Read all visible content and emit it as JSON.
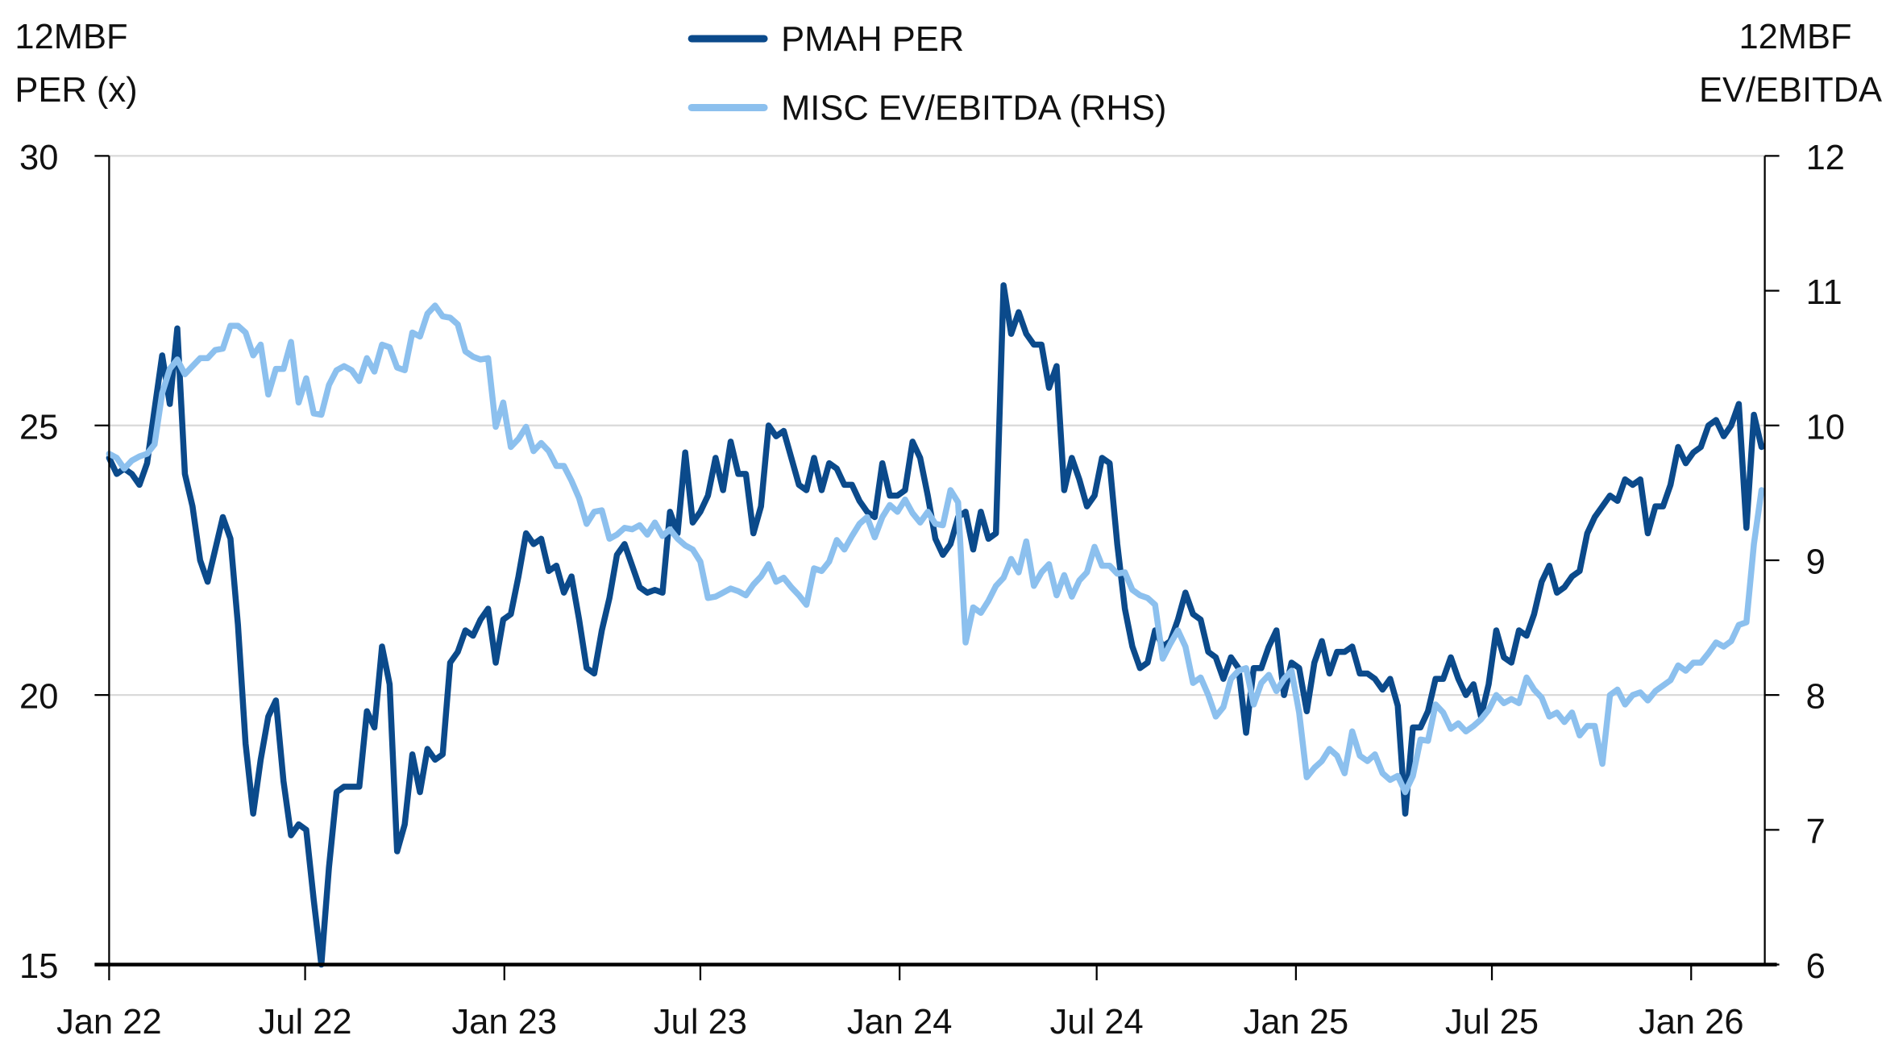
{
  "chart_data": {
    "type": "line",
    "title": "",
    "ylabel_left": [
      "12MBF",
      "PER (x)"
    ],
    "ylabel_right": [
      "12MBF",
      "EV/EBITDA"
    ],
    "xlabel": "",
    "x_ticks": [
      {
        "date": "2022-01-01",
        "label": "Jan 22"
      },
      {
        "date": "2022-07-01",
        "label": "Jul 22"
      },
      {
        "date": "2023-01-01",
        "label": "Jan 23"
      },
      {
        "date": "2023-07-01",
        "label": "Jul 23"
      },
      {
        "date": "2024-01-01",
        "label": "Jan 24"
      },
      {
        "date": "2024-07-01",
        "label": "Jul 24"
      },
      {
        "date": "2025-01-01",
        "label": "Jan 25"
      },
      {
        "date": "2025-07-01",
        "label": "Jul 25"
      },
      {
        "date": "2026-01-01",
        "label": "Jan 26"
      }
    ],
    "xlim": [
      "2022-01-01",
      "2026-03-10"
    ],
    "ylim_left": [
      15,
      30
    ],
    "ylim_right": [
      6,
      12
    ],
    "y_ticks_left": [
      "30",
      "25",
      "20",
      "15"
    ],
    "y_ticks_right": [
      "12",
      "11",
      "10",
      "9",
      "8",
      "7",
      "6"
    ],
    "grid": "horizontal",
    "legend_position": "top-center",
    "dates": [
      "2022-01-01",
      "2022-01-08",
      "2022-01-15",
      "2022-01-22",
      "2022-01-29",
      "2022-02-05",
      "2022-02-12",
      "2022-02-19",
      "2022-02-26",
      "2022-03-05",
      "2022-03-12",
      "2022-03-19",
      "2022-03-26",
      "2022-04-02",
      "2022-04-09",
      "2022-04-16",
      "2022-04-23",
      "2022-04-30",
      "2022-05-07",
      "2022-05-14",
      "2022-05-21",
      "2022-05-28",
      "2022-06-04",
      "2022-06-11",
      "2022-06-18",
      "2022-06-25",
      "2022-07-02",
      "2022-07-09",
      "2022-07-16",
      "2022-07-23",
      "2022-07-30",
      "2022-08-06",
      "2022-08-13",
      "2022-08-20",
      "2022-08-27",
      "2022-09-03",
      "2022-09-10",
      "2022-09-17",
      "2022-09-24",
      "2022-10-01",
      "2022-10-08",
      "2022-10-15",
      "2022-10-22",
      "2022-10-29",
      "2022-11-05",
      "2022-11-12",
      "2022-11-19",
      "2022-11-26",
      "2022-12-03",
      "2022-12-10",
      "2022-12-17",
      "2022-12-24",
      "2022-12-31",
      "2023-01-07",
      "2023-01-14",
      "2023-01-21",
      "2023-01-28",
      "2023-02-04",
      "2023-02-11",
      "2023-02-18",
      "2023-02-25",
      "2023-03-04",
      "2023-03-11",
      "2023-03-18",
      "2023-03-25",
      "2023-04-01",
      "2023-04-08",
      "2023-04-15",
      "2023-04-22",
      "2023-04-29",
      "2023-05-06",
      "2023-05-13",
      "2023-05-20",
      "2023-05-27",
      "2023-06-03",
      "2023-06-10",
      "2023-06-17",
      "2023-06-24",
      "2023-07-01",
      "2023-07-08",
      "2023-07-15",
      "2023-07-22",
      "2023-07-29",
      "2023-08-05",
      "2023-08-12",
      "2023-08-19",
      "2023-08-26",
      "2023-09-02",
      "2023-09-09",
      "2023-09-16",
      "2023-09-23",
      "2023-09-30",
      "2023-10-07",
      "2023-10-14",
      "2023-10-21",
      "2023-10-28",
      "2023-11-04",
      "2023-11-11",
      "2023-11-18",
      "2023-11-25",
      "2023-12-02",
      "2023-12-09",
      "2023-12-16",
      "2023-12-23",
      "2023-12-30",
      "2024-01-06",
      "2024-01-13",
      "2024-01-20",
      "2024-01-27",
      "2024-02-03",
      "2024-02-10",
      "2024-02-17",
      "2024-02-24",
      "2024-03-02",
      "2024-03-09",
      "2024-03-16",
      "2024-03-23",
      "2024-03-30",
      "2024-04-06",
      "2024-04-13",
      "2024-04-20",
      "2024-04-27",
      "2024-05-04",
      "2024-05-11",
      "2024-05-18",
      "2024-05-25",
      "2024-06-01",
      "2024-06-08",
      "2024-06-15",
      "2024-06-22",
      "2024-06-29",
      "2024-07-06",
      "2024-07-13",
      "2024-07-20",
      "2024-07-27",
      "2024-08-03",
      "2024-08-10",
      "2024-08-17",
      "2024-08-24",
      "2024-08-31",
      "2024-09-07",
      "2024-09-14",
      "2024-09-21",
      "2024-09-28",
      "2024-10-05",
      "2024-10-12",
      "2024-10-19",
      "2024-10-26",
      "2024-11-02",
      "2024-11-09",
      "2024-11-16",
      "2024-11-23",
      "2024-11-30",
      "2024-12-07",
      "2024-12-14",
      "2024-12-21",
      "2024-12-28",
      "2025-01-04",
      "2025-01-11",
      "2025-01-18",
      "2025-01-25",
      "2025-02-01",
      "2025-02-08",
      "2025-02-15",
      "2025-02-22",
      "2025-03-01",
      "2025-03-08",
      "2025-03-15",
      "2025-03-22",
      "2025-03-29",
      "2025-04-05",
      "2025-04-12",
      "2025-04-19",
      "2025-04-26",
      "2025-05-03",
      "2025-05-10",
      "2025-05-17",
      "2025-05-24",
      "2025-05-31",
      "2025-06-07",
      "2025-06-14",
      "2025-06-21",
      "2025-06-28",
      "2025-07-05",
      "2025-07-12",
      "2025-07-19",
      "2025-07-26",
      "2025-08-02",
      "2025-08-09",
      "2025-08-16",
      "2025-08-23",
      "2025-08-30",
      "2025-09-06",
      "2025-09-13",
      "2025-09-20",
      "2025-09-27",
      "2025-10-04",
      "2025-10-11",
      "2025-10-18",
      "2025-10-25",
      "2025-11-01",
      "2025-11-08",
      "2025-11-15",
      "2025-11-22",
      "2025-11-29",
      "2025-12-06",
      "2025-12-13",
      "2025-12-20",
      "2025-12-27",
      "2026-01-03",
      "2026-01-10",
      "2026-01-17",
      "2026-01-24",
      "2026-01-31",
      "2026-02-07",
      "2026-02-14",
      "2026-02-21",
      "2026-02-28",
      "2026-03-07"
    ],
    "series": [
      {
        "name": "PMAH PER",
        "axis": "left",
        "color": "#0b4a8b",
        "values": [
          24.4,
          24.1,
          24.2,
          24.1,
          23.9,
          24.3,
          25.3,
          26.3,
          25.4,
          26.8,
          24.1,
          23.5,
          22.5,
          22.1,
          22.7,
          23.3,
          22.9,
          21.3,
          19.1,
          17.8,
          18.8,
          19.6,
          19.9,
          18.4,
          17.4,
          17.6,
          17.5,
          16.2,
          15.0,
          16.8,
          18.2,
          18.3,
          18.3,
          18.3,
          19.7,
          19.4,
          20.9,
          20.2,
          17.1,
          17.6,
          18.9,
          18.2,
          19.0,
          18.8,
          18.9,
          20.6,
          20.8,
          21.2,
          21.1,
          21.4,
          21.6,
          20.6,
          21.4,
          21.5,
          22.2,
          23.0,
          22.8,
          22.9,
          22.3,
          22.4,
          21.9,
          22.2,
          21.4,
          20.5,
          20.4,
          21.2,
          21.8,
          22.6,
          22.8,
          22.4,
          22.0,
          21.9,
          21.95,
          21.9,
          23.4,
          23.0,
          24.5,
          23.2,
          23.4,
          23.7,
          24.4,
          23.8,
          24.7,
          24.1,
          24.1,
          23.0,
          23.5,
          25.0,
          24.8,
          24.9,
          24.4,
          23.9,
          23.8,
          24.4,
          23.8,
          24.3,
          24.2,
          23.9,
          23.9,
          23.6,
          23.4,
          23.3,
          24.3,
          23.7,
          23.7,
          23.8,
          24.7,
          24.4,
          23.7,
          22.9,
          22.6,
          22.8,
          23.3,
          23.4,
          22.7,
          23.4,
          22.9,
          23.0,
          27.6,
          26.7,
          27.1,
          26.7,
          26.5,
          26.5,
          25.7,
          26.1,
          23.8,
          24.4,
          24.0,
          23.5,
          23.7,
          24.4,
          24.3,
          22.8,
          21.6,
          20.9,
          20.5,
          20.6,
          21.2,
          20.9,
          21.0,
          21.4,
          21.9,
          21.5,
          21.4,
          20.8,
          20.7,
          20.3,
          20.7,
          20.5,
          19.3,
          20.5,
          20.5,
          20.9,
          21.2,
          20.0,
          20.6,
          20.5,
          19.7,
          20.6,
          21.0,
          20.4,
          20.8,
          20.8,
          20.9,
          20.4,
          20.4,
          20.3,
          20.1,
          20.3,
          19.8,
          17.8,
          19.4,
          19.4,
          19.7,
          20.3,
          20.3,
          20.7,
          20.3,
          20.0,
          20.2,
          19.6,
          20.2,
          21.2,
          20.7,
          20.6,
          21.2,
          21.1,
          21.5,
          22.1,
          22.4,
          21.9,
          22.0,
          22.2,
          22.3,
          23.0,
          23.3,
          23.5,
          23.7,
          23.6,
          24.0,
          23.9,
          24.0,
          23.0,
          23.5,
          23.5,
          23.9,
          24.6,
          24.3,
          24.5,
          24.6,
          25.0,
          25.1,
          24.8,
          25.0,
          25.4,
          23.1,
          25.2,
          24.6
        ]
      },
      {
        "name": "MISC EV/EBITDA (RHS)",
        "axis": "right",
        "color": "#8cc0ee",
        "values": [
          9.79,
          9.76,
          9.68,
          9.74,
          9.77,
          9.79,
          9.86,
          10.24,
          10.42,
          10.49,
          10.38,
          10.44,
          10.5,
          10.5,
          10.56,
          10.57,
          10.74,
          10.74,
          10.69,
          10.52,
          10.6,
          10.23,
          10.42,
          10.42,
          10.62,
          10.17,
          10.35,
          10.09,
          10.08,
          10.3,
          10.41,
          10.44,
          10.41,
          10.33,
          10.5,
          10.4,
          10.6,
          10.58,
          10.43,
          10.41,
          10.69,
          10.66,
          10.83,
          10.89,
          10.81,
          10.8,
          10.75,
          10.55,
          10.51,
          10.49,
          10.5,
          9.99,
          10.17,
          9.84,
          9.9,
          9.99,
          9.81,
          9.87,
          9.81,
          9.7,
          9.7,
          9.59,
          9.46,
          9.27,
          9.36,
          9.37,
          9.16,
          9.19,
          9.24,
          9.23,
          9.26,
          9.19,
          9.28,
          9.18,
          9.23,
          9.16,
          9.11,
          9.08,
          8.99,
          8.72,
          8.73,
          8.76,
          8.79,
          8.77,
          8.74,
          8.82,
          8.88,
          8.97,
          8.84,
          8.87,
          8.8,
          8.74,
          8.67,
          8.94,
          8.92,
          8.99,
          9.15,
          9.08,
          9.18,
          9.27,
          9.32,
          9.17,
          9.32,
          9.41,
          9.36,
          9.45,
          9.35,
          9.28,
          9.36,
          9.27,
          9.26,
          9.52,
          9.43,
          8.39,
          8.65,
          8.61,
          8.7,
          8.81,
          8.87,
          9.01,
          8.91,
          9.14,
          8.81,
          8.91,
          8.97,
          8.74,
          8.89,
          8.73,
          8.85,
          8.91,
          9.1,
          8.96,
          8.96,
          8.9,
          8.91,
          8.78,
          8.74,
          8.72,
          8.67,
          8.27,
          8.38,
          8.48,
          8.36,
          8.09,
          8.13,
          8.0,
          7.84,
          7.91,
          8.12,
          8.18,
          8.2,
          7.93,
          8.09,
          8.15,
          8.03,
          8.12,
          8.18,
          7.87,
          7.39,
          7.46,
          7.51,
          7.6,
          7.55,
          7.42,
          7.73,
          7.55,
          7.51,
          7.56,
          7.42,
          7.37,
          7.4,
          7.28,
          7.4,
          7.67,
          7.66,
          7.93,
          7.87,
          7.75,
          7.79,
          7.73,
          7.77,
          7.82,
          7.89,
          8.0,
          7.94,
          7.97,
          7.94,
          8.13,
          8.04,
          7.98,
          7.84,
          7.87,
          7.8,
          7.87,
          7.7,
          7.77,
          7.77,
          7.49,
          8.0,
          8.04,
          7.93,
          8.0,
          8.02,
          7.96,
          8.03,
          8.07,
          8.11,
          8.22,
          8.18,
          8.24,
          8.24,
          8.31,
          8.39,
          8.36,
          8.4,
          8.52,
          8.54,
          9.12,
          9.52
        ]
      }
    ]
  }
}
